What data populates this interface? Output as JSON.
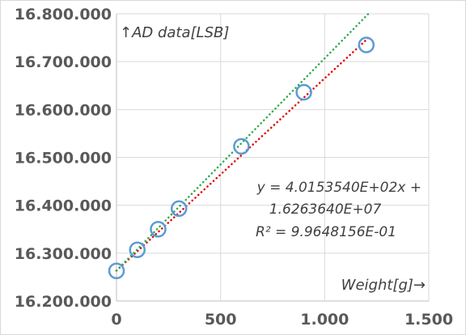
{
  "chart_data": {
    "type": "scatter",
    "title": "",
    "ylabel": "↑AD data[LSB]",
    "xlabel": "Weight[g]→",
    "xlim": [
      0,
      1500
    ],
    "ylim": [
      16200000,
      16800000
    ],
    "x_ticks": [
      0,
      500,
      1000,
      1500
    ],
    "x_tick_labels": [
      "0",
      "500",
      "1.000",
      "1.500"
    ],
    "y_ticks": [
      16200000,
      16300000,
      16400000,
      16500000,
      16600000,
      16700000,
      16800000
    ],
    "y_tick_labels": [
      "16.200.000",
      "16.300.000",
      "16.400.000",
      "16.500.000",
      "16.600.000",
      "16.700.000",
      "16.800.000"
    ],
    "grid": true,
    "series": [
      {
        "points": [
          {
            "x": 0,
            "y": 16263000
          },
          {
            "x": 100,
            "y": 16307000
          },
          {
            "x": 200,
            "y": 16350000
          },
          {
            "x": 300,
            "y": 16393000
          },
          {
            "x": 600,
            "y": 16523000
          },
          {
            "x": 900,
            "y": 16636000
          },
          {
            "x": 1200,
            "y": 16735000
          }
        ],
        "marker_color": "#5b9bd5"
      }
    ],
    "trendlines": [
      {
        "x0": 0,
        "y0": 16263640,
        "x1": 1215,
        "y1": 16751500,
        "color": "#e00000",
        "style": "dotted"
      },
      {
        "x0": 0,
        "y0": 16263640,
        "x1": 1210,
        "y1": 16800000,
        "color": "#2eaa4a",
        "style": "dotted"
      }
    ],
    "annotation": {
      "lines": [
        "y = 4.0153540E+02x +",
        "1.6263640E+07",
        "R² = 9.9648156E-01"
      ]
    }
  }
}
